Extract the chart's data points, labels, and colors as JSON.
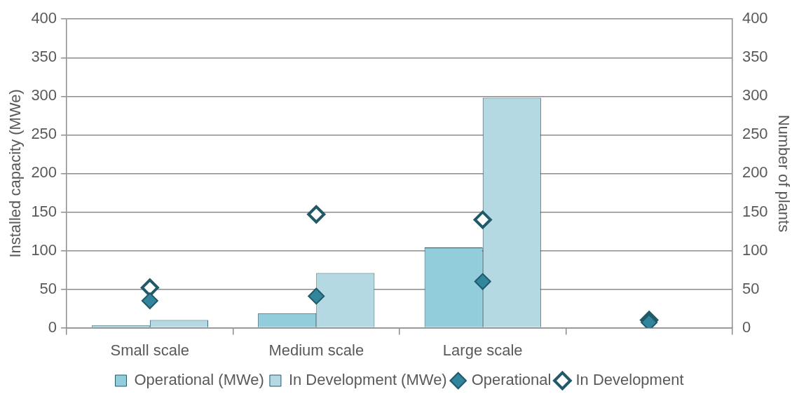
{
  "chart_data": {
    "type": "bar",
    "ylabel": "Installed capacity (MWe)",
    "y2label": "Number of plants",
    "categories": [
      "Small scale",
      "Medium scale",
      "Large scale",
      null
    ],
    "series": [
      {
        "name": "Operational (MWe)",
        "color": "#92cddc",
        "values": [
          3,
          19,
          104,
          null
        ]
      },
      {
        "name": "In Development (MWe)",
        "color": "#b4d9e2",
        "values": [
          10,
          71,
          298,
          null
        ]
      },
      {
        "name": "Operational",
        "type": "scatter",
        "axis": "y2",
        "marker": "diamond",
        "color": "#31859c",
        "values": [
          35,
          41,
          60,
          7
        ]
      },
      {
        "name": "In Development",
        "type": "scatter",
        "axis": "y2",
        "marker": "diamond",
        "color": "#215968",
        "values": [
          52,
          147,
          140,
          10
        ]
      }
    ],
    "ylim": [
      0,
      400
    ],
    "yticks": [
      0,
      50,
      100,
      150,
      200,
      250,
      300,
      350,
      400
    ],
    "y2lim": [
      0,
      400
    ],
    "y2ticks": [
      0,
      50,
      100,
      150,
      200,
      250,
      300,
      350,
      400
    ],
    "grid": "y",
    "legend": "bottom"
  }
}
